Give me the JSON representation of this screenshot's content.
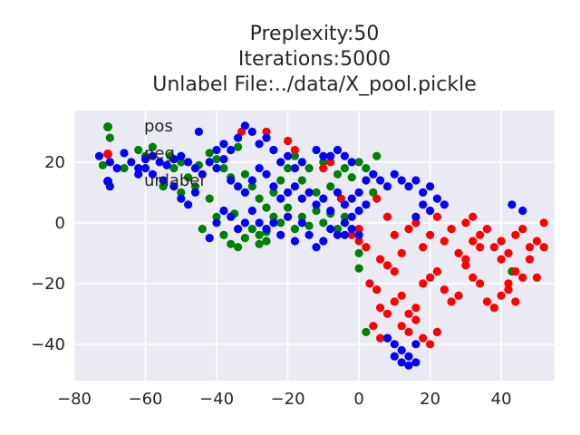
{
  "chart_data": {
    "type": "scatter",
    "title": [
      "Preplexity:50",
      "Iterations:5000",
      "Unlabel File:../data/X_pool.pickle"
    ],
    "xlabel": "",
    "ylabel": "",
    "xlim": [
      -80,
      55
    ],
    "ylim": [
      -52,
      37
    ],
    "xticks": [
      -80,
      -60,
      -40,
      -20,
      0,
      20,
      40
    ],
    "yticks": [
      -40,
      -20,
      0,
      20
    ],
    "xtick_labels": [
      "−80",
      "−60",
      "−40",
      "−20",
      "0",
      "20",
      "40"
    ],
    "ytick_labels": [
      "−40",
      "−20",
      "0",
      "20"
    ],
    "grid": true,
    "background": "#eaeaf2",
    "legend_position": "upper-left",
    "legend": [
      {
        "label": "pos",
        "color": "#008000"
      },
      {
        "label": "neg",
        "color": "#ff0000"
      },
      {
        "label": "unlabel",
        "color": "#0000ff"
      }
    ],
    "series": [
      {
        "name": "pos",
        "color": "#008000",
        "points": [
          [
            -70,
            28
          ],
          [
            -62,
            24
          ],
          [
            -58,
            25
          ],
          [
            -53,
            22
          ],
          [
            -50,
            20
          ],
          [
            -48,
            15
          ],
          [
            -45,
            19
          ],
          [
            -42,
            23
          ],
          [
            -40,
            21
          ],
          [
            -38,
            18
          ],
          [
            -36,
            15
          ],
          [
            -34,
            25
          ],
          [
            -32,
            16
          ],
          [
            -30,
            12
          ],
          [
            -28,
            8
          ],
          [
            -26,
            5
          ],
          [
            -24,
            10
          ],
          [
            -22,
            14
          ],
          [
            -20,
            18
          ],
          [
            -18,
            22
          ],
          [
            -16,
            14
          ],
          [
            -14,
            18
          ],
          [
            -12,
            10
          ],
          [
            -10,
            20
          ],
          [
            -8,
            12
          ],
          [
            -6,
            16
          ],
          [
            -4,
            18
          ],
          [
            -2,
            15
          ],
          [
            0,
            20
          ],
          [
            2,
            18
          ],
          [
            4,
            10
          ],
          [
            5,
            22
          ],
          [
            -44,
            -2
          ],
          [
            -40,
            2
          ],
          [
            -38,
            -4
          ],
          [
            -36,
            -7
          ],
          [
            -34,
            -8
          ],
          [
            -32,
            -5
          ],
          [
            -30,
            -2
          ],
          [
            -28,
            -4
          ],
          [
            -26,
            -6
          ],
          [
            -24,
            2
          ],
          [
            -22,
            0
          ],
          [
            -20,
            5
          ],
          [
            -18,
            -2
          ],
          [
            -16,
            2
          ],
          [
            -14,
            -1
          ],
          [
            -12,
            4
          ],
          [
            -10,
            0
          ],
          [
            -8,
            3
          ],
          [
            -6,
            -2
          ],
          [
            -4,
            2
          ],
          [
            0,
            -10
          ],
          [
            0,
            -15
          ],
          [
            2,
            -36
          ],
          [
            -50,
            10
          ],
          [
            -55,
            12
          ],
          [
            -66,
            18
          ],
          [
            -72,
            19
          ],
          [
            -60,
            22
          ],
          [
            -46,
            12
          ],
          [
            -42,
            8
          ],
          [
            -35,
            3
          ],
          [
            -26,
            -3
          ],
          [
            -52,
            18
          ],
          [
            43,
            -16
          ],
          [
            -28,
            -7
          ]
        ]
      },
      {
        "name": "neg",
        "color": "#ff0000",
        "points": [
          [
            -33,
            30
          ],
          [
            -26,
            30
          ],
          [
            -20,
            27
          ],
          [
            -18,
            24
          ],
          [
            -8,
            20
          ],
          [
            -10,
            18
          ],
          [
            -5,
            8
          ],
          [
            5,
            8
          ],
          [
            8,
            2
          ],
          [
            10,
            -4
          ],
          [
            12,
            -10
          ],
          [
            14,
            -2
          ],
          [
            16,
            0
          ],
          [
            18,
            -8
          ],
          [
            20,
            -4
          ],
          [
            22,
            2
          ],
          [
            24,
            -6
          ],
          [
            26,
            -2
          ],
          [
            28,
            -10
          ],
          [
            30,
            -12
          ],
          [
            32,
            -6
          ],
          [
            34,
            -4
          ],
          [
            36,
            -2
          ],
          [
            38,
            -8
          ],
          [
            40,
            -6
          ],
          [
            42,
            -10
          ],
          [
            44,
            -4
          ],
          [
            46,
            -2
          ],
          [
            48,
            -8
          ],
          [
            50,
            -6
          ],
          [
            52,
            0
          ],
          [
            52,
            -8
          ],
          [
            3,
            -20
          ],
          [
            5,
            -22
          ],
          [
            6,
            -28
          ],
          [
            8,
            -30
          ],
          [
            10,
            -26
          ],
          [
            12,
            -24
          ],
          [
            14,
            -30
          ],
          [
            16,
            -28
          ],
          [
            18,
            -20
          ],
          [
            20,
            -18
          ],
          [
            22,
            -16
          ],
          [
            24,
            -22
          ],
          [
            26,
            -26
          ],
          [
            28,
            -24
          ],
          [
            30,
            -14
          ],
          [
            32,
            -18
          ],
          [
            34,
            -20
          ],
          [
            36,
            -26
          ],
          [
            38,
            -28
          ],
          [
            40,
            -24
          ],
          [
            42,
            -22
          ],
          [
            44,
            -16
          ],
          [
            46,
            -18
          ],
          [
            48,
            -12
          ],
          [
            50,
            -18
          ],
          [
            12,
            -34
          ],
          [
            14,
            -36
          ],
          [
            16,
            -32
          ],
          [
            18,
            -38
          ],
          [
            20,
            -40
          ],
          [
            22,
            -36
          ],
          [
            4,
            -34
          ],
          [
            6,
            -38
          ],
          [
            8,
            -38
          ],
          [
            0,
            -2
          ],
          [
            -2,
            -4
          ],
          [
            0,
            -6
          ],
          [
            2,
            -8
          ],
          [
            6,
            -12
          ],
          [
            8,
            -14
          ],
          [
            10,
            -16
          ],
          [
            30,
            0
          ],
          [
            32,
            2
          ],
          [
            34,
            -8
          ],
          [
            40,
            -12
          ],
          [
            42,
            -20
          ],
          [
            44,
            -26
          ],
          [
            -70,
            20
          ]
        ]
      },
      {
        "name": "unlabel",
        "color": "#0000ff",
        "points": [
          [
            -73,
            22
          ],
          [
            -70,
            20
          ],
          [
            -68,
            18
          ],
          [
            -66,
            23
          ],
          [
            -64,
            20
          ],
          [
            -62,
            18
          ],
          [
            -60,
            21
          ],
          [
            -58,
            22
          ],
          [
            -56,
            20
          ],
          [
            -54,
            19
          ],
          [
            -52,
            21
          ],
          [
            -50,
            22
          ],
          [
            -48,
            20
          ],
          [
            -46,
            18
          ],
          [
            -44,
            16
          ],
          [
            -42,
            20
          ],
          [
            -40,
            18
          ],
          [
            -38,
            21
          ],
          [
            -36,
            14
          ],
          [
            -34,
            12
          ],
          [
            -32,
            10
          ],
          [
            -30,
            14
          ],
          [
            -28,
            18
          ],
          [
            -26,
            16
          ],
          [
            -24,
            12
          ],
          [
            -22,
            8
          ],
          [
            -20,
            10
          ],
          [
            -18,
            12
          ],
          [
            -16,
            8
          ],
          [
            -14,
            10
          ],
          [
            -12,
            6
          ],
          [
            -10,
            8
          ],
          [
            -8,
            4
          ],
          [
            -6,
            10
          ],
          [
            -4,
            6
          ],
          [
            -2,
            8
          ],
          [
            0,
            10
          ],
          [
            2,
            14
          ],
          [
            4,
            16
          ],
          [
            6,
            14
          ],
          [
            8,
            12
          ],
          [
            10,
            16
          ],
          [
            12,
            14
          ],
          [
            14,
            12
          ],
          [
            16,
            14
          ],
          [
            18,
            10
          ],
          [
            20,
            12
          ],
          [
            22,
            8
          ],
          [
            24,
            6
          ],
          [
            20,
            4
          ],
          [
            18,
            6
          ],
          [
            16,
            2
          ],
          [
            -42,
            -5
          ],
          [
            -40,
            0
          ],
          [
            -38,
            4
          ],
          [
            -36,
            2
          ],
          [
            -34,
            -2
          ],
          [
            -32,
            0
          ],
          [
            -30,
            4
          ],
          [
            -28,
            0
          ],
          [
            -26,
            -2
          ],
          [
            -24,
            0
          ],
          [
            -22,
            -4
          ],
          [
            -20,
            2
          ],
          [
            -18,
            -6
          ],
          [
            -16,
            0
          ],
          [
            -14,
            -4
          ],
          [
            -12,
            -8
          ],
          [
            -10,
            -6
          ],
          [
            -8,
            -2
          ],
          [
            -6,
            -4
          ],
          [
            -4,
            0
          ],
          [
            -2,
            2
          ],
          [
            0,
            4
          ],
          [
            2,
            6
          ],
          [
            -34,
            28
          ],
          [
            -32,
            32
          ],
          [
            -30,
            30
          ],
          [
            -28,
            26
          ],
          [
            -26,
            28
          ],
          [
            -24,
            24
          ],
          [
            -22,
            20
          ],
          [
            -20,
            22
          ],
          [
            -46,
            10
          ],
          [
            -48,
            6
          ],
          [
            -50,
            8
          ],
          [
            -52,
            12
          ],
          [
            -55,
            14
          ],
          [
            -58,
            16
          ],
          [
            -60,
            18
          ],
          [
            -62,
            16
          ],
          [
            -45,
            30
          ],
          [
            -70,
            12
          ],
          [
            8,
            -38
          ],
          [
            10,
            -40
          ],
          [
            12,
            -42
          ],
          [
            14,
            -44
          ],
          [
            16,
            -40
          ],
          [
            12,
            -46
          ],
          [
            14,
            -47
          ],
          [
            10,
            -44
          ],
          [
            16,
            -46
          ],
          [
            43,
            6
          ],
          [
            46,
            4
          ],
          [
            -10,
            22
          ],
          [
            -12,
            24
          ],
          [
            -8,
            22
          ],
          [
            -6,
            24
          ],
          [
            -4,
            22
          ],
          [
            -2,
            20
          ],
          [
            -36,
            24
          ],
          [
            -38,
            26
          ],
          [
            -40,
            24
          ],
          [
            -2,
            -2
          ],
          [
            -4,
            -4
          ],
          [
            0,
            -4
          ],
          [
            -16,
            20
          ],
          [
            -18,
            18
          ]
        ]
      }
    ]
  }
}
